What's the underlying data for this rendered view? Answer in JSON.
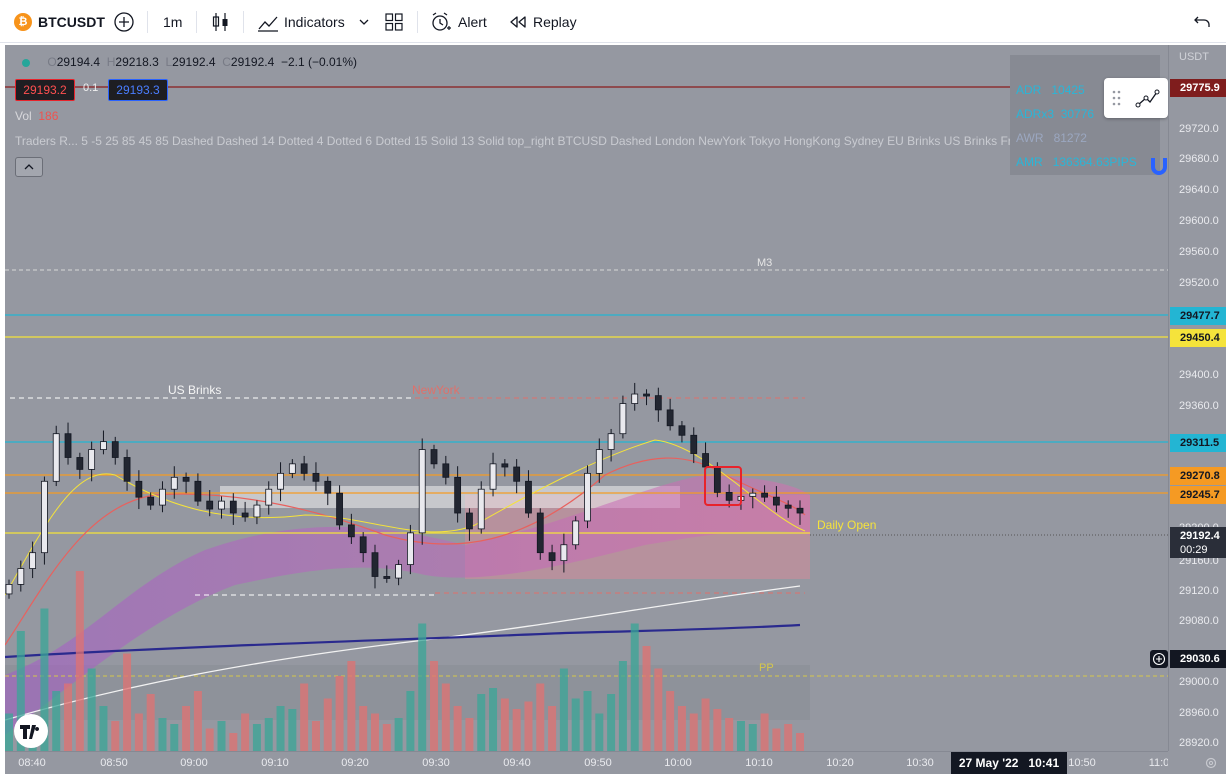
{
  "toolbar": {
    "symbol": "BTCUSDT",
    "coin_glyph": "₿",
    "interval": "1m",
    "indicators_label": "Indicators",
    "alert_label": "Alert",
    "replay_label": "Replay"
  },
  "legend": {
    "open_label": "O",
    "open": "29194.4",
    "high_label": "H",
    "high": "29218.3",
    "low_label": "L",
    "low": "29192.4",
    "close_label": "C",
    "close": "29192.4",
    "change": "−2.1 (−0.01%)",
    "bid": "29193.2",
    "spread": "0.1",
    "ask": "29193.3",
    "vol_label": "Vol",
    "vol_value": "186",
    "indicator_line": "Traders R... 5 -5 25 85 45 85 Dashed Dashed 14 Dotted 4 Dotted 6 Dotted 15 Solid 13 Solid top_right BTCUSD Dashed London NewYork Tokyo HongKong Sydney EU Brinks US Brinks Frankfurt crypto ..."
  },
  "adr_table": {
    "rows": [
      {
        "label": "ADR",
        "value": "10425"
      },
      {
        "label": "ADRx3",
        "value": "30776"
      },
      {
        "label": "AWR",
        "value": "81272"
      },
      {
        "label": "AMR",
        "value": "136364.63PIPS"
      }
    ]
  },
  "price_axis": {
    "currency": "USDT",
    "ticks": [
      "29720.0",
      "29680.0",
      "29640.0",
      "29600.0",
      "29560.0",
      "29520.0",
      "29400.0",
      "29360.0",
      "29200.0",
      "29160.0",
      "29120.0",
      "29080.0",
      "29000.0",
      "28960.0",
      "28920.0"
    ],
    "labels": {
      "top_red": "29775.9",
      "teal_1": "29477.7",
      "yellow": "29450.4",
      "teal_2": "29311.5",
      "orange_1": "29270.8",
      "orange_2": "29245.7",
      "last_price": "29192.4",
      "countdown": "00:29",
      "crosshair": "29030.6"
    }
  },
  "time_axis": {
    "ticks": [
      "08:40",
      "08:50",
      "09:00",
      "09:10",
      "09:20",
      "09:30",
      "09:40",
      "09:50",
      "10:00",
      "10:10",
      "10:20",
      "10:30",
      "10:50",
      "11:0"
    ],
    "cursor_label": "27 May '22   10:41"
  },
  "overlay_labels": {
    "m3": "M3",
    "us_brinks": "US Brinks",
    "newyork": "NewYork",
    "daily_open": "Daily Open",
    "pp": "PP"
  },
  "chart_data": {
    "type": "candlestick",
    "symbol": "BTCUSDT",
    "interval": "1m",
    "ylim": [
      28900,
      29790
    ],
    "x_ticks": [
      "08:40",
      "08:50",
      "09:00",
      "09:10",
      "09:20",
      "09:30",
      "09:40",
      "09:50",
      "10:00",
      "10:10"
    ],
    "close_series": [
      29110,
      29130,
      29150,
      29240,
      29300,
      29270,
      29255,
      29280,
      29290,
      29270,
      29240,
      29220,
      29210,
      29230,
      29245,
      29240,
      29215,
      29205,
      29215,
      29200,
      29195,
      29210,
      29230,
      29250,
      29262,
      29250,
      29240,
      29225,
      29185,
      29170,
      29150,
      29120,
      29118,
      29135,
      29175,
      29280,
      29262,
      29245,
      29200,
      29180,
      29230,
      29262,
      29258,
      29240,
      29200,
      29150,
      29140,
      29160,
      29190,
      29250,
      29280,
      29300,
      29338,
      29350,
      29348,
      29330,
      29310,
      29298,
      29275,
      29258,
      29226,
      29216,
      29221,
      29225,
      29220,
      29210,
      29206,
      29200
    ],
    "volume_series": [
      25,
      80,
      22,
      95,
      40,
      45,
      120,
      55,
      30,
      20,
      65,
      25,
      38,
      22,
      18,
      30,
      40,
      15,
      20,
      12,
      25,
      18,
      22,
      30,
      28,
      45,
      20,
      35,
      50,
      60,
      30,
      25,
      18,
      22,
      40,
      85,
      60,
      45,
      30,
      22,
      38,
      42,
      35,
      28,
      33,
      45,
      30,
      55,
      35,
      40,
      25,
      38,
      60,
      85,
      70,
      55,
      40,
      30,
      25,
      35,
      28,
      22,
      20,
      18,
      25,
      15,
      18,
      12
    ]
  }
}
